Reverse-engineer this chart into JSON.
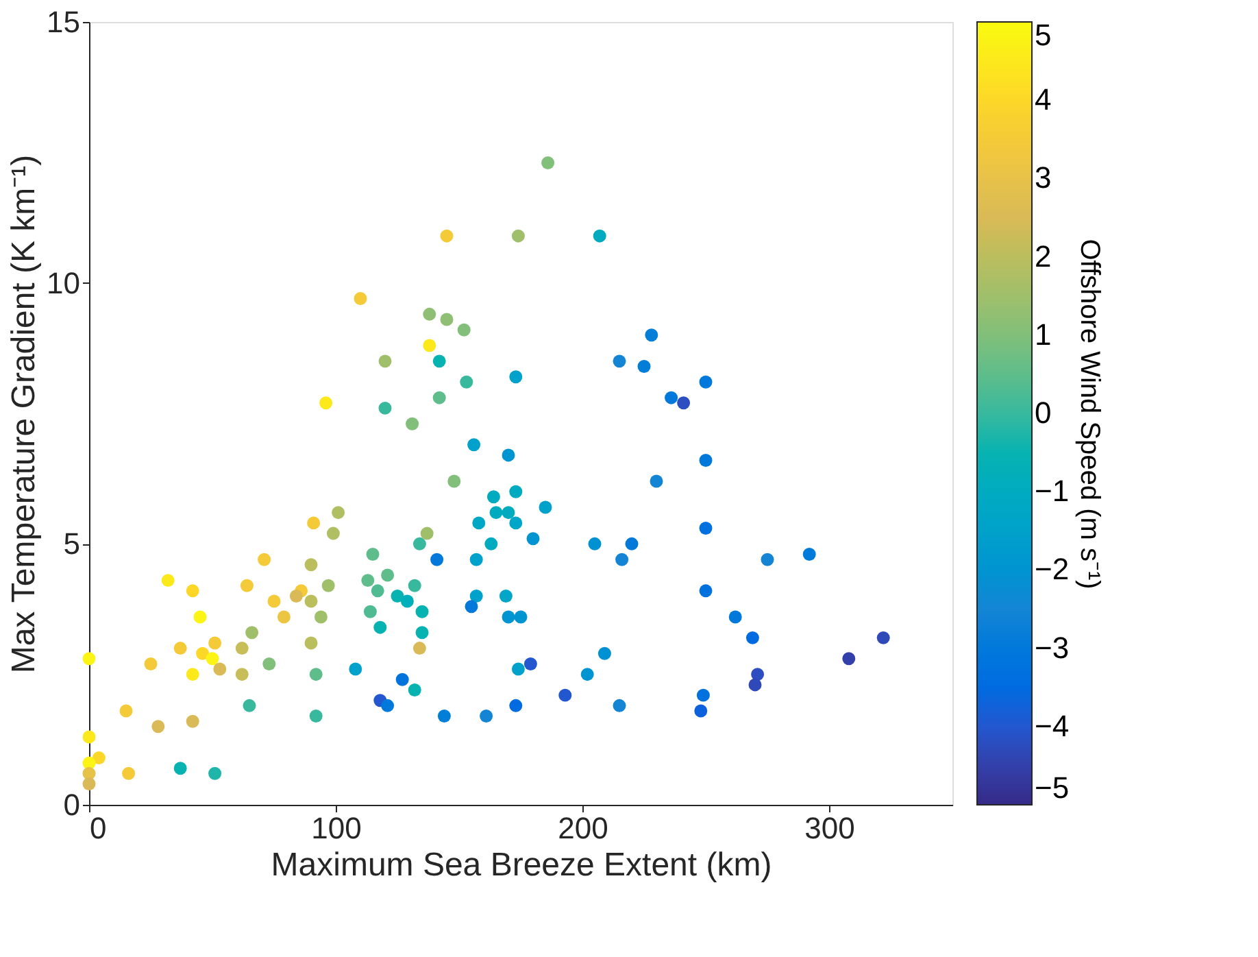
{
  "chart_data": {
    "type": "scatter",
    "xlabel": "Maximum Sea Breeze Extent (km)",
    "ylabel": "Max Temperature Gradient (K km⁻¹)",
    "clabel": "Offshore Wind Speed (m s⁻¹)",
    "xlim": [
      0,
      350
    ],
    "ylim": [
      0,
      15
    ],
    "xticks": [
      0,
      100,
      200,
      300
    ],
    "yticks": [
      0,
      5,
      10,
      15
    ],
    "clim": [
      -5,
      5
    ],
    "cticks": [
      -5,
      -4,
      -3,
      -2,
      -1,
      0,
      1,
      2,
      3,
      4,
      5
    ],
    "grid": false,
    "marker": "circle",
    "x": [
      186,
      145,
      174,
      207,
      110,
      138,
      145,
      152,
      138,
      120,
      142,
      173,
      215,
      228,
      225,
      153,
      96,
      120,
      142,
      236,
      241,
      250,
      131,
      156,
      170,
      230,
      148,
      250,
      164,
      173,
      158,
      165,
      170,
      173,
      163,
      185,
      180,
      141,
      157,
      157,
      155,
      169,
      170,
      175,
      179,
      174,
      173,
      161,
      144,
      127,
      132,
      118,
      121,
      108,
      92,
      92,
      90,
      94,
      97,
      99,
      101,
      91,
      90,
      86,
      90,
      84,
      79,
      75,
      71,
      64,
      66,
      62,
      73,
      62,
      65,
      115,
      113,
      121,
      117,
      114,
      118,
      125,
      129,
      132,
      135,
      135,
      134,
      134,
      137,
      32,
      42,
      45,
      37,
      51,
      46,
      50,
      53,
      42,
      25,
      0,
      15,
      28,
      42,
      0,
      4,
      0,
      0,
      0,
      16,
      37,
      51,
      205,
      220,
      216,
      250,
      275,
      292,
      250,
      262,
      269,
      271,
      270,
      308,
      322,
      209,
      202,
      193,
      215,
      249,
      248
    ],
    "values": [
      12.3,
      10.9,
      10.9,
      10.9,
      9.7,
      9.4,
      9.3,
      9.1,
      8.8,
      8.5,
      8.5,
      8.2,
      8.5,
      9.0,
      8.4,
      8.1,
      7.7,
      7.6,
      7.8,
      7.8,
      7.7,
      8.1,
      7.3,
      6.9,
      6.7,
      6.2,
      6.2,
      6.6,
      5.9,
      6.0,
      5.4,
      5.6,
      5.6,
      5.4,
      5.0,
      5.7,
      5.1,
      4.7,
      4.7,
      4.0,
      3.8,
      4.0,
      3.6,
      3.6,
      2.7,
      2.6,
      1.9,
      1.7,
      1.7,
      2.4,
      2.2,
      2.0,
      1.9,
      2.6,
      1.7,
      2.5,
      3.1,
      3.6,
      4.2,
      5.2,
      5.6,
      5.4,
      4.6,
      4.1,
      3.9,
      4.0,
      3.6,
      3.9,
      4.7,
      4.2,
      3.3,
      3.0,
      2.7,
      2.5,
      1.9,
      4.8,
      4.3,
      4.4,
      4.1,
      3.7,
      3.4,
      4.0,
      3.9,
      4.2,
      3.7,
      3.3,
      3.0,
      5.0,
      5.2,
      4.3,
      4.1,
      3.6,
      3.0,
      3.1,
      2.9,
      2.8,
      2.6,
      2.5,
      2.7,
      2.8,
      1.8,
      1.5,
      1.6,
      1.3,
      0.9,
      0.8,
      0.6,
      0.4,
      0.6,
      0.7,
      0.6,
      5.0,
      5.0,
      4.7,
      5.3,
      4.7,
      4.8,
      4.1,
      3.6,
      3.2,
      2.5,
      2.3,
      2.8,
      3.2,
      2.9,
      2.5,
      2.1,
      1.9,
      2.1,
      1.8
    ],
    "cvalues": [
      1,
      3.5,
      1.5,
      -1,
      3.5,
      1.2,
      1.2,
      1,
      4.5,
      1.5,
      -0.5,
      -1.5,
      -2.5,
      -2.8,
      -2.8,
      0,
      4.5,
      0,
      0.5,
      -3,
      -4.2,
      -3,
      1,
      -1.5,
      -2,
      -2.5,
      1,
      -3,
      -1,
      -1,
      -1.2,
      -1,
      -1,
      -1.3,
      -1,
      -1.5,
      -2,
      -3,
      -1.5,
      -1.5,
      -3,
      -1.3,
      -2,
      -2,
      -4,
      -1.5,
      -3.5,
      -2.5,
      -2.8,
      -3.2,
      -0.5,
      -4,
      -3,
      -1.5,
      0,
      0.5,
      2,
      1.5,
      1.5,
      1.8,
      1.8,
      3.5,
      2,
      3.5,
      2,
      2.5,
      3.2,
      3.5,
      3.5,
      3.5,
      1.5,
      2.2,
      1,
      2.2,
      0,
      0.5,
      0.5,
      0.5,
      0.3,
      0.3,
      -0.5,
      -0.5,
      -0.8,
      0,
      -0.5,
      -0.5,
      2.5,
      0,
      1.5,
      4.5,
      4,
      4.8,
      3.5,
      3.5,
      4,
      4.8,
      2.5,
      4.5,
      3.5,
      4.8,
      3.5,
      2.5,
      2.5,
      4.5,
      4,
      4.8,
      3,
      2.5,
      3.5,
      -0.5,
      -0.3,
      -2.1,
      -3,
      -2.5,
      -3.3,
      -2.5,
      -2.9,
      -3.3,
      -3,
      -3.5,
      -4.2,
      -4.3,
      -4.5,
      -4.3,
      -2.1,
      -2,
      -4,
      -2.5,
      -3.3,
      -3.8
    ]
  }
}
